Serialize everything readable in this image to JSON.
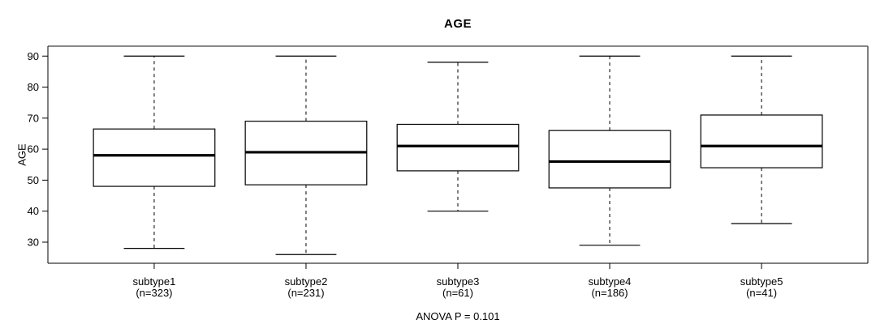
{
  "chart_data": {
    "type": "boxplot",
    "title": "AGE",
    "ylabel": "AGE",
    "xlabel": "",
    "footnote": "ANOVA P = 0.101",
    "grid": false,
    "legend": "none",
    "yticks": [
      30,
      40,
      50,
      60,
      70,
      80,
      90
    ],
    "ylim": [
      23.2,
      93.2
    ],
    "categories": [
      "subtype1",
      "subtype2",
      "subtype3",
      "subtype4",
      "subtype5"
    ],
    "sample_size_labels": [
      "(n=323)",
      "(n=231)",
      "(n=61)",
      "(n=186)",
      "(n=41)"
    ],
    "series": [
      {
        "name": "subtype1",
        "n": 323,
        "whisker_low": 28,
        "q1": 48,
        "median": 58,
        "q3": 66.5,
        "whisker_high": 90,
        "outliers": []
      },
      {
        "name": "subtype2",
        "n": 231,
        "whisker_low": 26,
        "q1": 48.5,
        "median": 59,
        "q3": 69,
        "whisker_high": 90,
        "outliers": []
      },
      {
        "name": "subtype3",
        "n": 61,
        "whisker_low": 40,
        "q1": 53,
        "median": 61,
        "q3": 68,
        "whisker_high": 88,
        "outliers": []
      },
      {
        "name": "subtype4",
        "n": 186,
        "whisker_low": 29,
        "q1": 47.5,
        "median": 56,
        "q3": 66,
        "whisker_high": 90,
        "outliers": []
      },
      {
        "name": "subtype5",
        "n": 41,
        "whisker_low": 36,
        "q1": 54,
        "median": 61,
        "q3": 71,
        "whisker_high": 90,
        "outliers": []
      }
    ],
    "colors": {
      "box_fill": "#ffffff",
      "box_border": "#000000",
      "median_line": "#000000",
      "whisker_line": "#000000",
      "frame_top": "#888888",
      "frame_side": "#555555",
      "axis": "#000000",
      "background": "#ffffff"
    }
  }
}
